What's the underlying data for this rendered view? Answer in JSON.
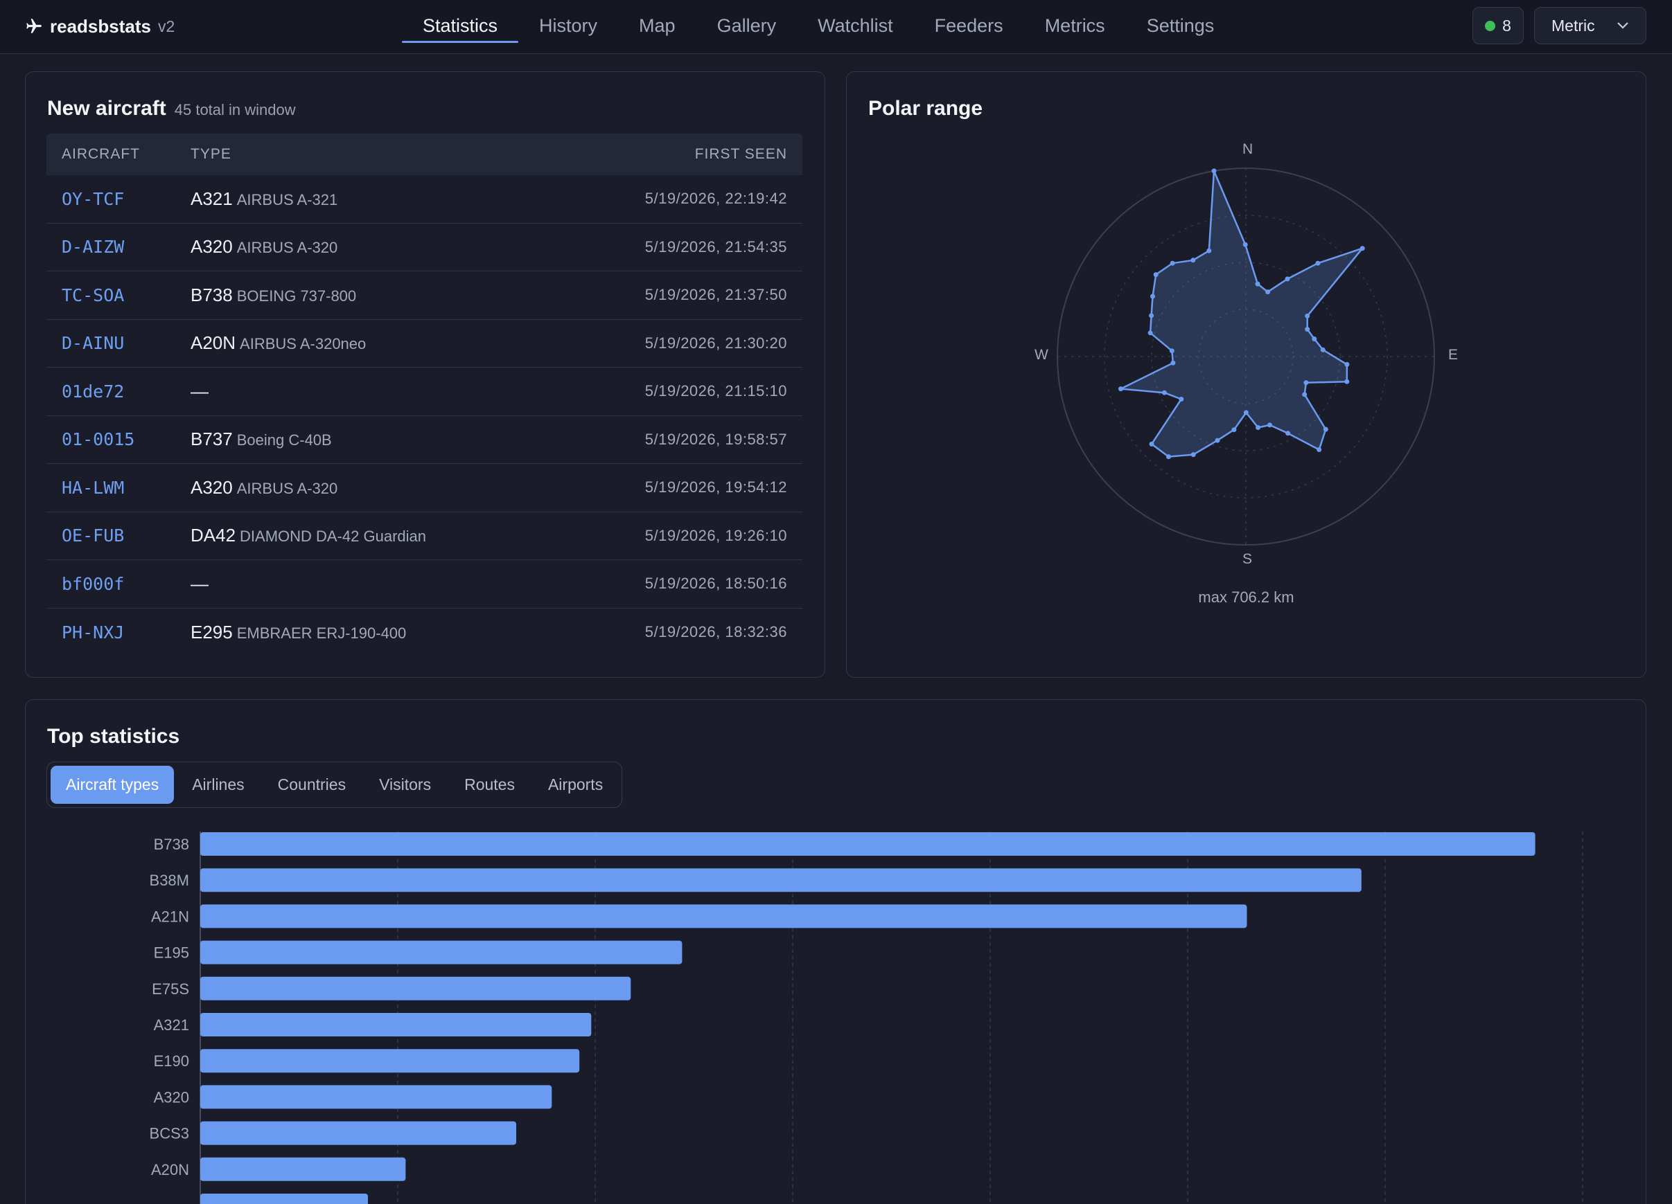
{
  "header": {
    "brand": "readsbstats",
    "version": "v2",
    "nav": [
      "Statistics",
      "History",
      "Map",
      "Gallery",
      "Watchlist",
      "Feeders",
      "Metrics",
      "Settings"
    ],
    "active_nav": "Statistics",
    "status_count": "8",
    "units": "Metric"
  },
  "new_aircraft": {
    "title": "New aircraft",
    "subtitle": "45 total in window",
    "columns": [
      "AIRCRAFT",
      "TYPE",
      "FIRST SEEN"
    ],
    "rows": [
      {
        "reg": "OY-TCF",
        "code": "A321",
        "name": "AIRBUS A-321",
        "seen": "5/19/2026, 22:19:42"
      },
      {
        "reg": "D-AIZW",
        "code": "A320",
        "name": "AIRBUS A-320",
        "seen": "5/19/2026, 21:54:35"
      },
      {
        "reg": "TC-SOA",
        "code": "B738",
        "name": "BOEING 737-800",
        "seen": "5/19/2026, 21:37:50"
      },
      {
        "reg": "D-AINU",
        "code": "A20N",
        "name": "AIRBUS A-320neo",
        "seen": "5/19/2026, 21:30:20"
      },
      {
        "reg": "01de72",
        "code": "—",
        "name": "",
        "seen": "5/19/2026, 21:15:10"
      },
      {
        "reg": "01-0015",
        "code": "B737",
        "name": "Boeing C-40B",
        "seen": "5/19/2026, 19:58:57"
      },
      {
        "reg": "HA-LWM",
        "code": "A320",
        "name": "AIRBUS A-320",
        "seen": "5/19/2026, 19:54:12"
      },
      {
        "reg": "OE-FUB",
        "code": "DA42",
        "name": "DIAMOND DA-42 Guardian",
        "seen": "5/19/2026, 19:26:10"
      },
      {
        "reg": "bf000f",
        "code": "—",
        "name": "",
        "seen": "5/19/2026, 18:50:16"
      },
      {
        "reg": "PH-NXJ",
        "code": "E295",
        "name": "EMBRAER ERJ-190-400",
        "seen": "5/19/2026, 18:32:36"
      }
    ]
  },
  "polar": {
    "title": "Polar range",
    "compass": {
      "n": "N",
      "e": "E",
      "s": "S",
      "w": "W"
    },
    "max_label": "max 706.2 km",
    "max_km": 706.2,
    "points_km": [
      706.2,
      420,
      276,
      256,
      330,
      442,
      596,
      276,
      252,
      265,
      290,
      380,
      390,
      246,
      262,
      405,
      444,
      328,
      272,
      270,
      210,
      278,
      332,
      417,
      474,
      482,
      290,
      334,
      484,
      274,
      278,
      369,
      386,
      416,
      456,
      445,
      412,
      420
    ]
  },
  "top_stats": {
    "title": "Top statistics",
    "tabs": [
      "Aircraft types",
      "Airlines",
      "Countries",
      "Visitors",
      "Routes",
      "Airports"
    ],
    "active_tab": "Aircraft types",
    "chart_data": {
      "type": "bar",
      "orientation": "horizontal",
      "categories": [
        "B738",
        "B38M",
        "A21N",
        "E195",
        "E75S",
        "A321",
        "E190",
        "A320",
        "BCS3",
        "A20N"
      ],
      "values": [
        338,
        294,
        265,
        122,
        109,
        99,
        96,
        89,
        80,
        52
      ],
      "xlim": [
        0,
        350
      ],
      "grid": true,
      "colors": {
        "bar": "#6b9bf0"
      }
    }
  }
}
